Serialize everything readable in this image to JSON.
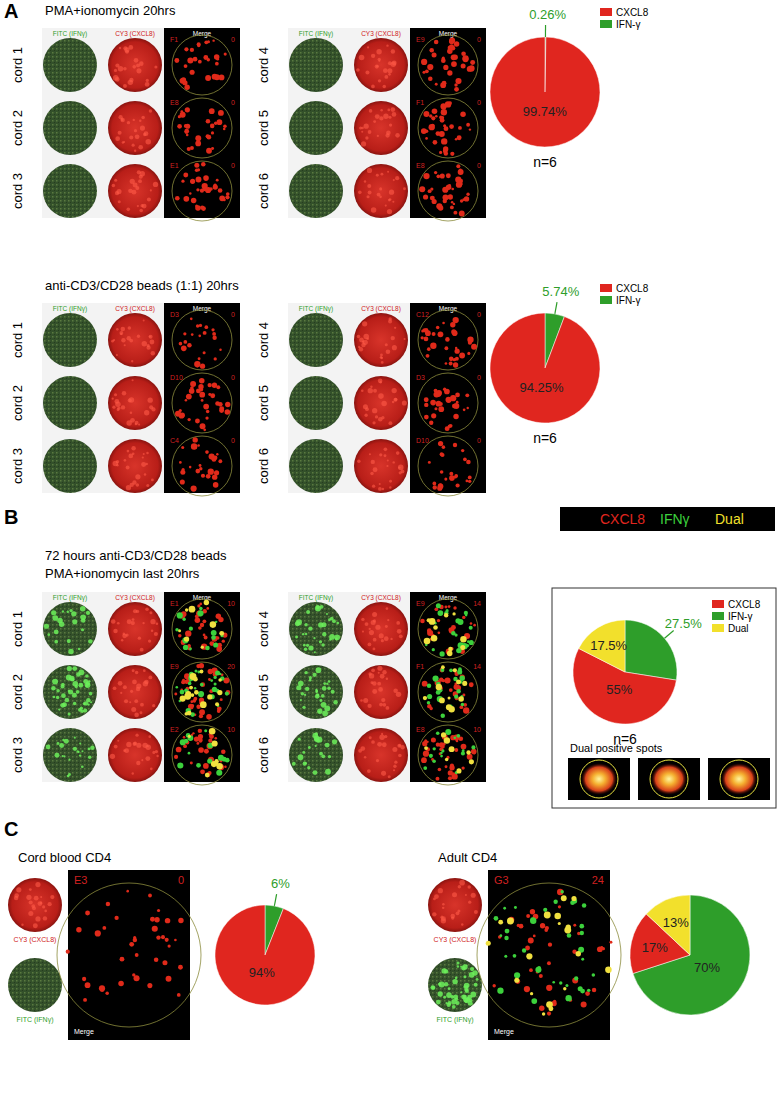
{
  "figure": {
    "panels": [
      {
        "letter": "A",
        "groups": [
          {
            "title": "PMA+ionomycin 20hrs",
            "fitc_label": "FITC (IFNγ)",
            "cy3_label": "CY3 (CXCL8)",
            "merge_label": "Merge",
            "wells": [
              {
                "cord": "cord 1",
                "well": "F1",
                "count": 0
              },
              {
                "cord": "cord 2",
                "well": "E8",
                "count": 0
              },
              {
                "cord": "cord 3",
                "well": "E1",
                "count": 0
              },
              {
                "cord": "cord 4",
                "well": "E9",
                "count": 0
              },
              {
                "cord": "cord 5",
                "well": "F1",
                "count": 0
              },
              {
                "cord": "cord 6",
                "well": "E8",
                "count": 0
              }
            ]
          },
          {
            "title": "anti-CD3/CD28 beads (1:1) 20hrs",
            "fitc_label": "FITC (IFNγ)",
            "cy3_label": "CY3 (CXCL8)",
            "merge_label": "Merge",
            "wells": [
              {
                "cord": "cord 1",
                "well": "D3",
                "count": 0
              },
              {
                "cord": "cord 2",
                "well": "D10",
                "count": 0
              },
              {
                "cord": "cord 3",
                "well": "C4",
                "count": 0
              },
              {
                "cord": "cord 4",
                "well": "C12",
                "count": 0
              },
              {
                "cord": "cord 5",
                "well": "D3",
                "count": 0
              },
              {
                "cord": "cord 6",
                "well": "D10",
                "count": 0
              }
            ]
          }
        ]
      },
      {
        "letter": "B",
        "color_key": [
          "CXCL8",
          "IFNγ",
          "Dual"
        ],
        "dual_caption": "Dual positive spots",
        "groups": [
          {
            "title": "72 hours anti-CD3/CD28 beads",
            "subtitle": "PMA+ionomycin last 20hrs",
            "fitc_label": "FITC (IFNγ)",
            "cy3_label": "CY3 (CXCL8)",
            "merge_label": "Merge",
            "wells": [
              {
                "cord": "cord 1",
                "well": "E1",
                "count": 10
              },
              {
                "cord": "cord 2",
                "well": "E9",
                "count": 20
              },
              {
                "cord": "cord 3",
                "well": "E2",
                "count": 10
              },
              {
                "cord": "cord 4",
                "well": "E9",
                "count": 14
              },
              {
                "cord": "cord 5",
                "well": "F1",
                "count": 14
              },
              {
                "cord": "cord 6",
                "well": "E8",
                "count": 10
              }
            ]
          }
        ]
      },
      {
        "letter": "C",
        "groups": [
          {
            "title": "Cord blood CD4",
            "well": "E3",
            "count": 0,
            "cy3_label": "CY3 (CXCL8)",
            "fitc_label": "FITC (IFNγ)",
            "merge_label": "Merge"
          },
          {
            "title": "Adult CD4",
            "well": "G3",
            "count": 24,
            "cy3_label": "CY3 (CXCL8)",
            "fitc_label": "FITC (IFNγ)",
            "merge_label": "Merge"
          }
        ]
      }
    ]
  },
  "chart_data": [
    {
      "type": "pie",
      "categories": [
        "CXCL8",
        "IFN-γ"
      ],
      "values": [
        99.74,
        0.26
      ],
      "value_labels": [
        "99.74%",
        "0.26%"
      ],
      "colors": [
        "#e0261f",
        "#2e9e2a"
      ],
      "legend": "right",
      "annotation": "n=6"
    },
    {
      "type": "pie",
      "categories": [
        "CXCL8",
        "IFN-γ"
      ],
      "values": [
        94.25,
        5.74
      ],
      "value_labels": [
        "94.25%",
        "5.74%"
      ],
      "colors": [
        "#e0261f",
        "#2e9e2a"
      ],
      "legend": "right",
      "annotation": "n=6"
    },
    {
      "type": "pie",
      "categories": [
        "CXCL8",
        "IFN-γ",
        "Dual"
      ],
      "values": [
        55,
        27.5,
        17.5
      ],
      "value_labels": [
        "55%",
        "27.5%",
        "17.5%"
      ],
      "colors": [
        "#e0261f",
        "#2e9e2a",
        "#f2e02c"
      ],
      "legend": "right",
      "annotation": "n=6"
    },
    {
      "type": "pie",
      "categories": [
        "CXCL8",
        "IFN-γ"
      ],
      "values": [
        94,
        6
      ],
      "value_labels": [
        "94%",
        "6%"
      ],
      "colors": [
        "#e0261f",
        "#2e9e2a"
      ]
    },
    {
      "type": "pie",
      "categories": [
        "CXCL8",
        "IFN-γ",
        "Dual"
      ],
      "values": [
        17,
        70,
        13
      ],
      "value_labels": [
        "17%",
        "70%",
        "13%"
      ],
      "colors": [
        "#e0261f",
        "#2e9e2a",
        "#f2e02c"
      ]
    }
  ]
}
